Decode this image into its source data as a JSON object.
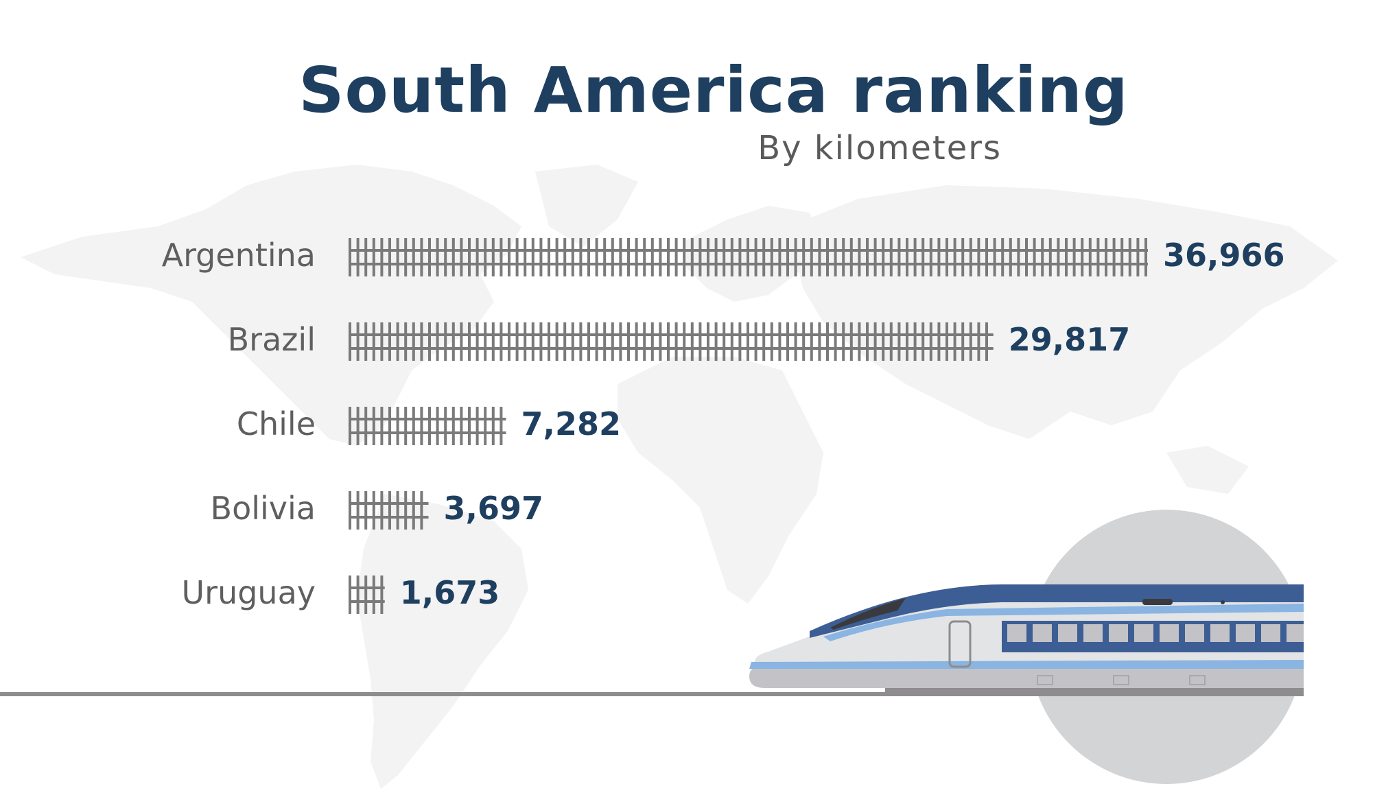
{
  "chart_data": {
    "type": "bar",
    "orientation": "horizontal",
    "title": "South America ranking",
    "subtitle": "By kilometers",
    "categories": [
      "Argentina",
      "Brazil",
      "Chile",
      "Bolivia",
      "Uruguay"
    ],
    "values": [
      36966,
      29817,
      7282,
      3697,
      1673
    ],
    "value_labels": [
      "36,966",
      "29,817",
      "7,282",
      "3,697",
      "1,673"
    ],
    "grid": false,
    "legend": "none"
  },
  "colors": {
    "title": "#1e3f5f",
    "category_text": "#5f5f5f",
    "value_text": "#1e3f5f",
    "rail": "#7a7a7a",
    "ground_line": "#8e8c8e",
    "map": "#f2f2f2",
    "circle": "#d3d4d6",
    "train_blue_dark": "#3d5e94",
    "train_blue_light": "#8ab4e2",
    "train_body": "#e3e4e6",
    "train_skirt": "#c3c2c6"
  },
  "decorations": {
    "background_icon": "world-map-icon",
    "illustration_icon": "high-speed-train-icon"
  }
}
